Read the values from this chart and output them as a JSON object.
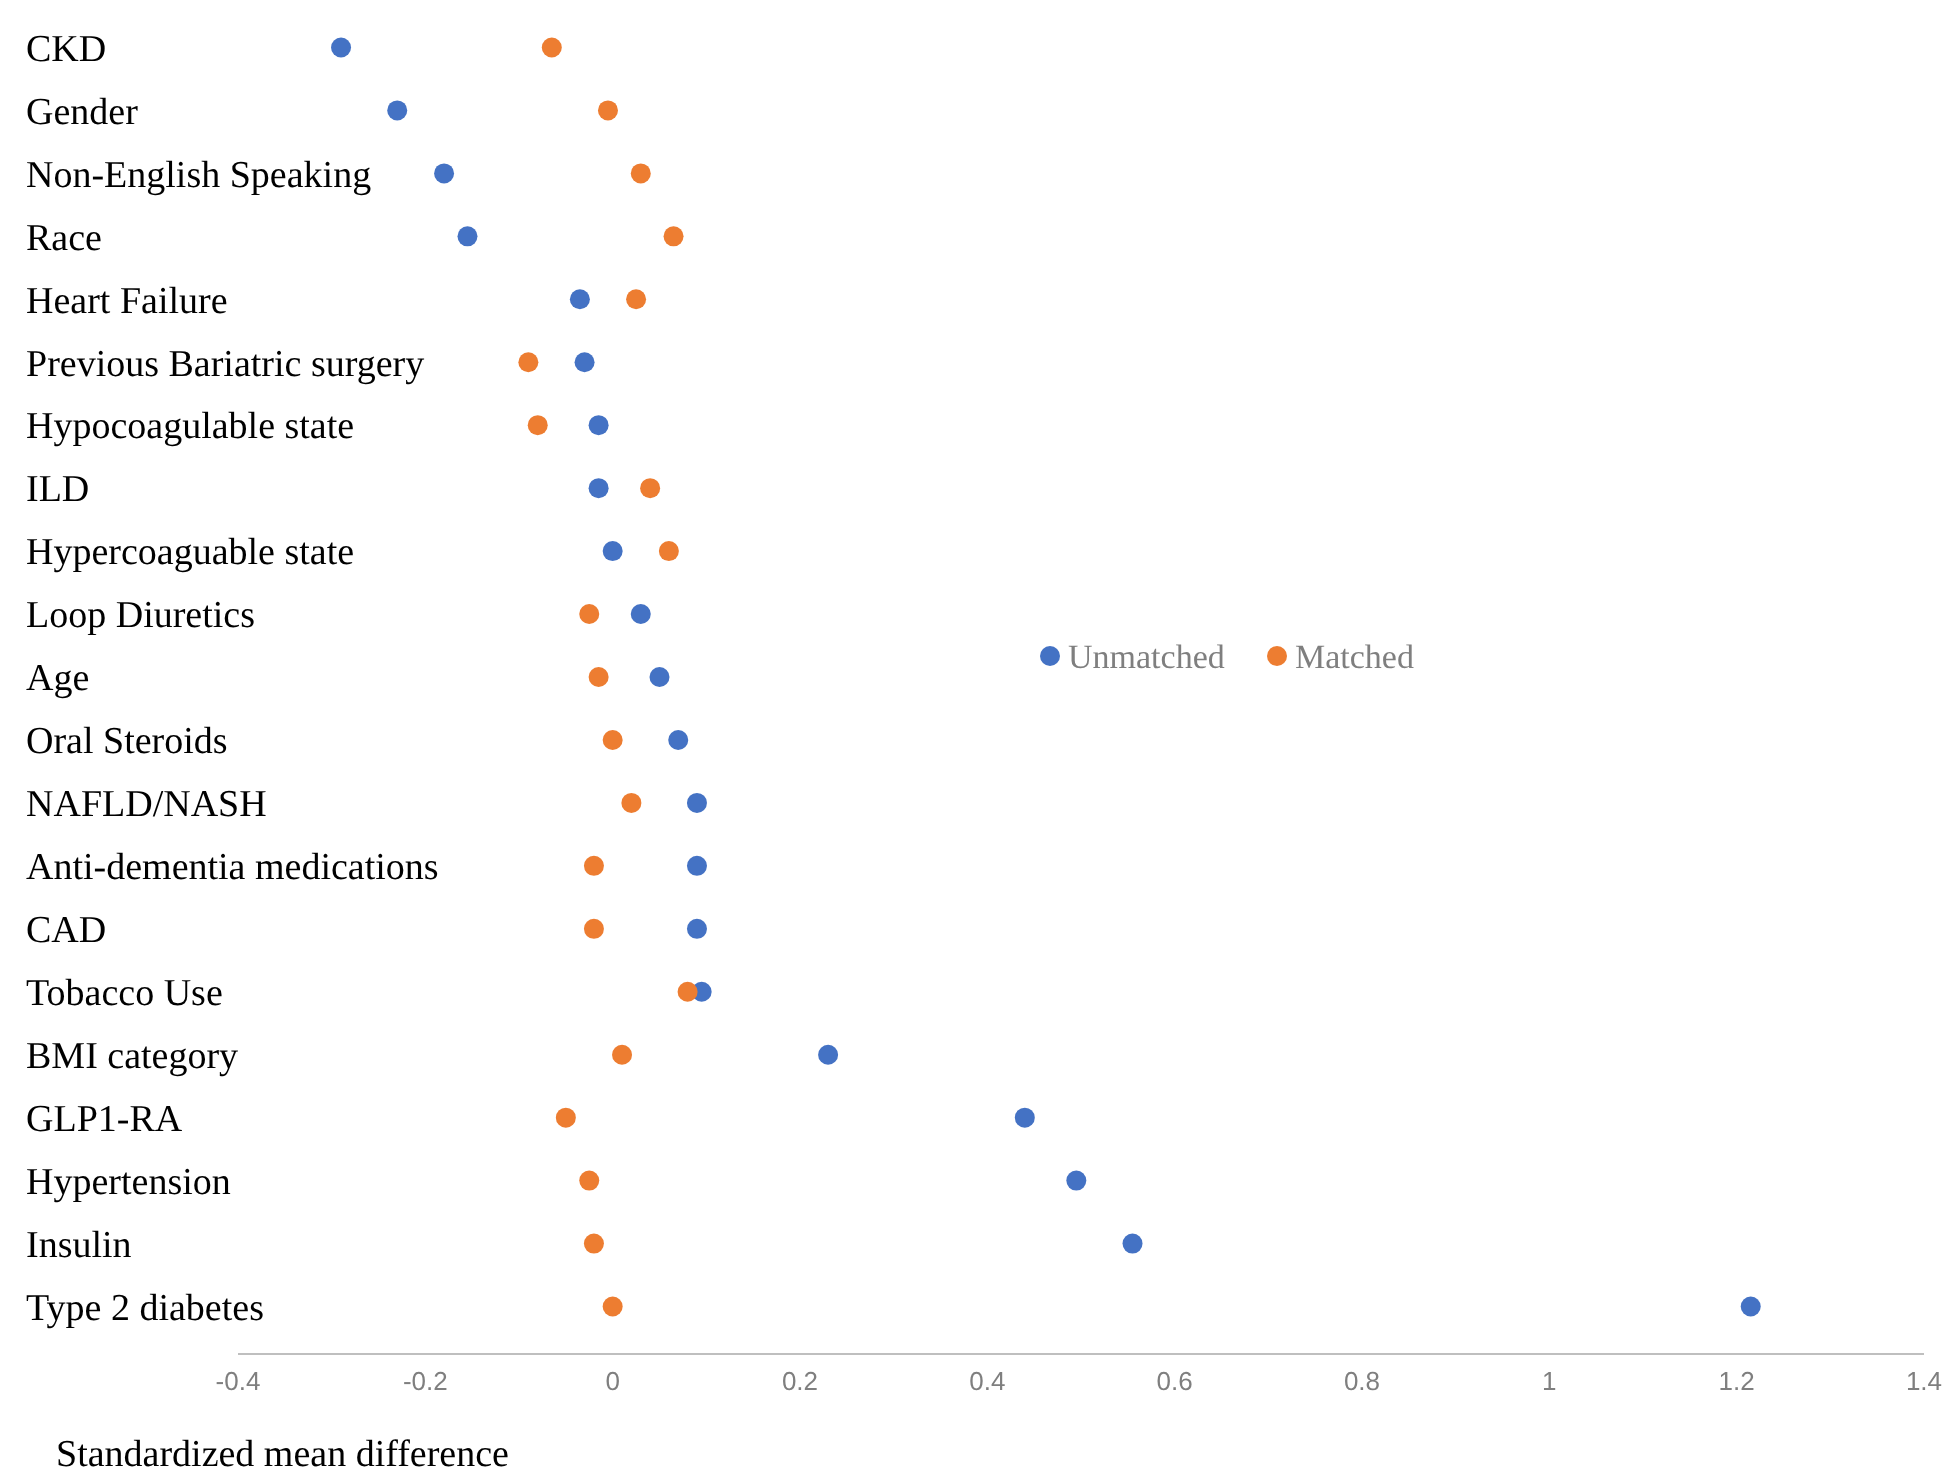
{
  "chart_data": {
    "type": "scatter",
    "xlabel": "Standardized mean difference",
    "categories": [
      "CKD",
      "Gender",
      "Non-English Speaking",
      "Race",
      "Heart Failure",
      "Previous Bariatric surgery",
      "Hypocoagulable state",
      "ILD",
      "Hypercoaguable state",
      "Loop Diuretics",
      "Age",
      "Oral Steroids",
      "NAFLD/NASH",
      "Anti-dementia medications",
      "CAD",
      "Tobacco Use",
      "BMI category",
      "GLP1-RA",
      "Hypertension",
      "Insulin",
      "Type 2 diabetes"
    ],
    "orientation": "horizontal",
    "series": [
      {
        "name": "Unmatched",
        "color": "#4472c4",
        "values": [
          -0.29,
          -0.23,
          -0.18,
          -0.155,
          -0.035,
          -0.03,
          -0.015,
          -0.015,
          0.0,
          0.03,
          0.05,
          0.07,
          0.09,
          0.09,
          0.09,
          0.095,
          0.23,
          0.44,
          0.495,
          0.555,
          1.215
        ]
      },
      {
        "name": "Matched",
        "color": "#ed7d31",
        "values": [
          -0.065,
          -0.005,
          0.03,
          0.065,
          0.025,
          -0.09,
          -0.08,
          0.04,
          0.06,
          -0.025,
          -0.015,
          0.0,
          0.02,
          -0.02,
          -0.02,
          0.08,
          0.01,
          -0.05,
          -0.025,
          -0.02,
          0.0
        ]
      }
    ],
    "xlim": [
      -0.4,
      1.4
    ],
    "xticks": [
      -0.4,
      -0.2,
      0,
      0.2,
      0.4,
      0.6,
      0.8,
      1,
      1.2,
      1.4
    ],
    "grid": false,
    "legend": "right",
    "marker": "circle"
  }
}
